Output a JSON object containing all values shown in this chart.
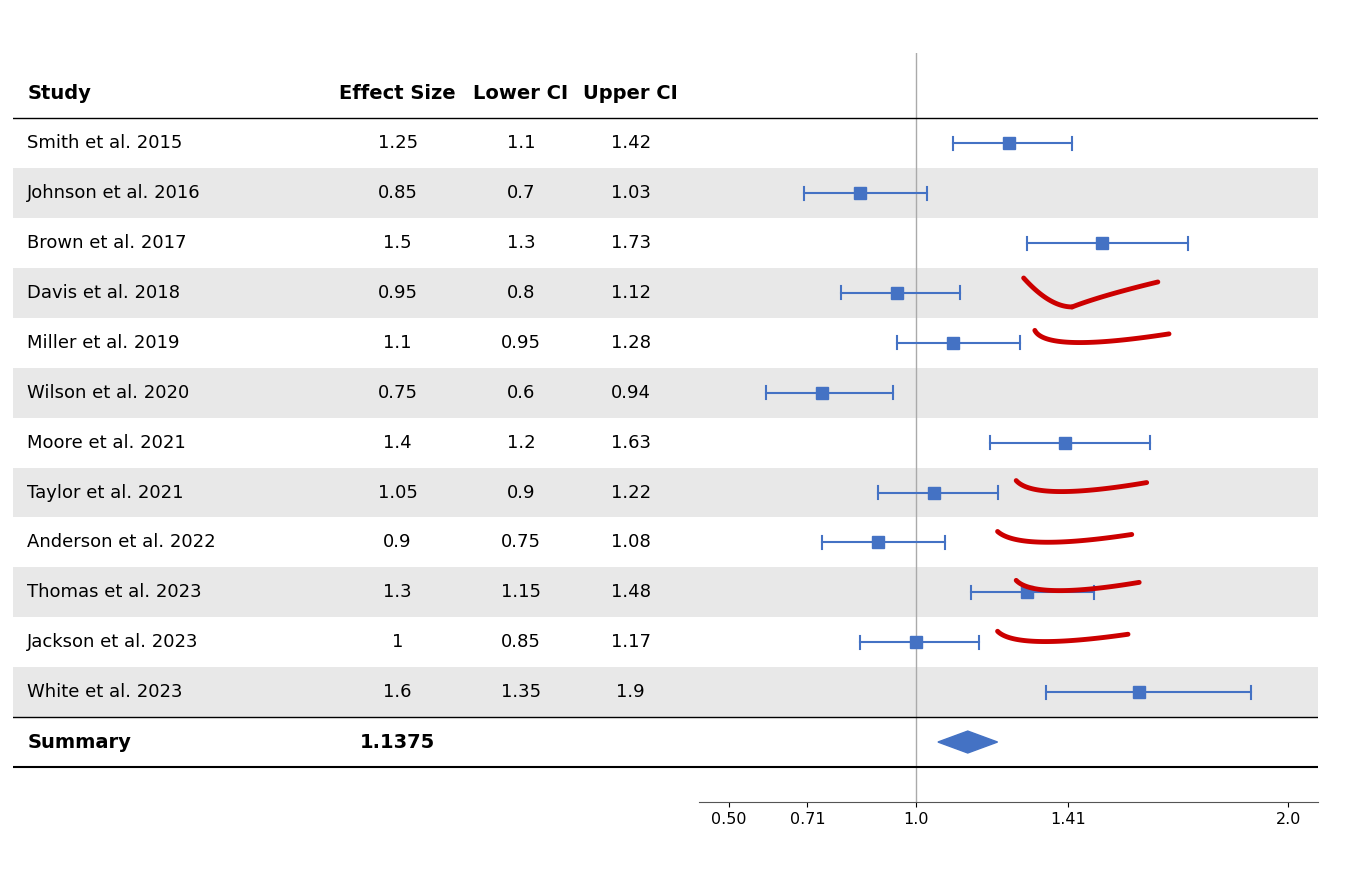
{
  "studies": [
    {
      "name": "Smith et al. 2015",
      "effect": 1.25,
      "lower": 1.1,
      "upper": 1.42,
      "shaded": false
    },
    {
      "name": "Johnson et al. 2016",
      "effect": 0.85,
      "lower": 0.7,
      "upper": 1.03,
      "shaded": true
    },
    {
      "name": "Brown et al. 2017",
      "effect": 1.5,
      "lower": 1.3,
      "upper": 1.73,
      "shaded": false
    },
    {
      "name": "Davis et al. 2018",
      "effect": 0.95,
      "lower": 0.8,
      "upper": 1.12,
      "shaded": true
    },
    {
      "name": "Miller et al. 2019",
      "effect": 1.1,
      "lower": 0.95,
      "upper": 1.28,
      "shaded": false
    },
    {
      "name": "Wilson et al. 2020",
      "effect": 0.75,
      "lower": 0.6,
      "upper": 0.94,
      "shaded": true
    },
    {
      "name": "Moore et al. 2021",
      "effect": 1.4,
      "lower": 1.2,
      "upper": 1.63,
      "shaded": false
    },
    {
      "name": "Taylor et al. 2021",
      "effect": 1.05,
      "lower": 0.9,
      "upper": 1.22,
      "shaded": true
    },
    {
      "name": "Anderson et al. 2022",
      "effect": 0.9,
      "lower": 0.75,
      "upper": 1.08,
      "shaded": false
    },
    {
      "name": "Thomas et al. 2023",
      "effect": 1.3,
      "lower": 1.15,
      "upper": 1.48,
      "shaded": true
    },
    {
      "name": "Jackson et al. 2023",
      "effect": 1.0,
      "lower": 0.85,
      "upper": 1.17,
      "shaded": false
    },
    {
      "name": "White et al. 2023",
      "effect": 1.6,
      "lower": 1.35,
      "upper": 1.9,
      "shaded": true
    }
  ],
  "summary": {
    "name": "Summary",
    "effect": "1.1375",
    "lower": 1.06,
    "upper": 1.22
  },
  "xlim": [
    0.42,
    2.08
  ],
  "xticks": [
    0.5,
    0.71,
    1.0,
    1.41,
    2.0
  ],
  "xticklabels": [
    "0.50",
    "0.71",
    "1.0",
    "1.41",
    "2.0"
  ],
  "shaded_color": "#e8e8e8",
  "bar_color": "#4472C4",
  "red_color": "#CC0000",
  "label_fontsize": 13,
  "tick_fontsize": 11.5,
  "header_fontsize": 14
}
